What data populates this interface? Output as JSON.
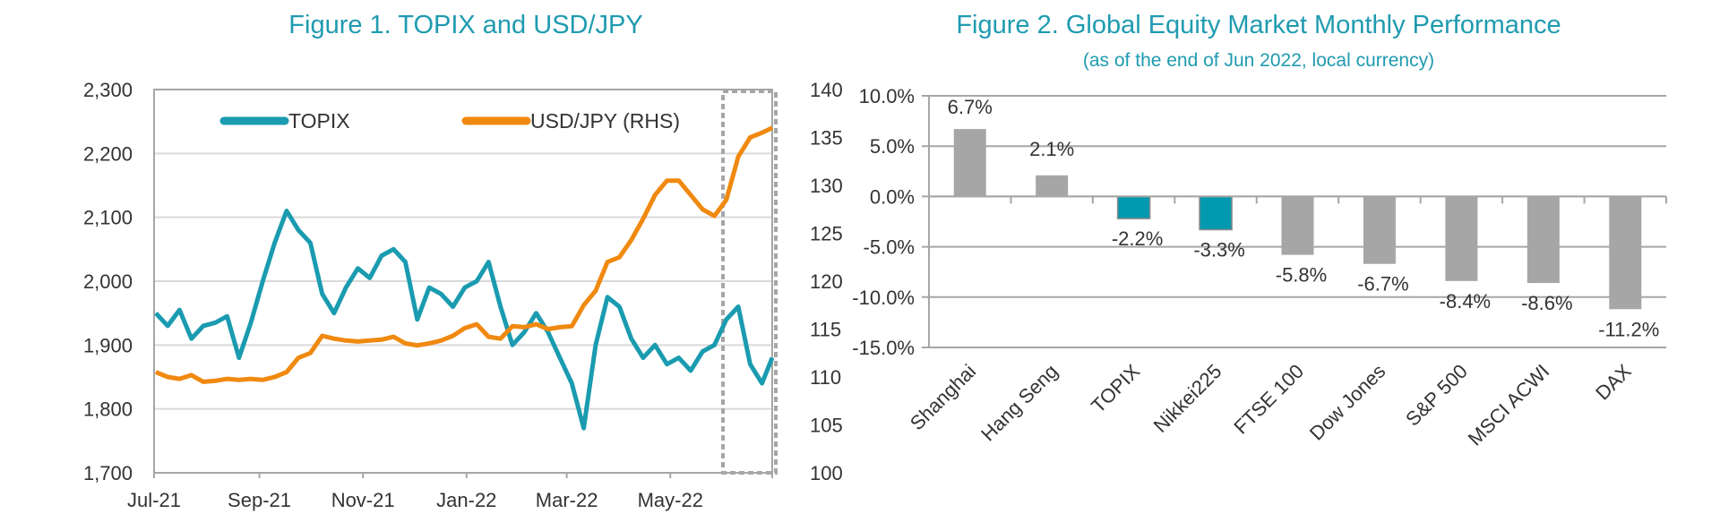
{
  "chart_data": [
    {
      "type": "line",
      "title": "Figure 1. TOPIX and USD/JPY",
      "x_tick_labels": [
        "Jul-21",
        "Sep-21",
        "Nov-21",
        "Jan-22",
        "Mar-22",
        "May-22"
      ],
      "x_ticks": [
        "2021-07-01",
        "2021-09-01",
        "2021-11-01",
        "2022-01-01",
        "2022-03-01",
        "2022-05-01"
      ],
      "xlim": [
        "2021-07-01",
        "2022-06-30"
      ],
      "y_left": {
        "lim": [
          1700,
          2300
        ],
        "ticks": [
          1700,
          1800,
          1900,
          2000,
          2100,
          2200,
          2300
        ],
        "tick_labels": [
          "1,700",
          "1,800",
          "1,900",
          "2,000",
          "2,100",
          "2,200",
          "2,300"
        ]
      },
      "y_right": {
        "lim": [
          100,
          140
        ],
        "ticks": [
          100,
          105,
          110,
          115,
          120,
          125,
          130,
          135,
          140
        ],
        "tick_labels": [
          "100",
          "105",
          "110",
          "115",
          "120",
          "125",
          "130",
          "135",
          "140"
        ]
      },
      "grid": true,
      "legend": "top",
      "highlight_box": {
        "from": "2022-06-01",
        "to": "2022-06-30",
        "style": "dashed"
      },
      "x": [
        "2021-07-02",
        "2021-07-09",
        "2021-07-16",
        "2021-07-23",
        "2021-07-30",
        "2021-08-06",
        "2021-08-13",
        "2021-08-20",
        "2021-08-27",
        "2021-09-03",
        "2021-09-10",
        "2021-09-17",
        "2021-09-24",
        "2021-10-01",
        "2021-10-08",
        "2021-10-15",
        "2021-10-22",
        "2021-10-29",
        "2021-11-05",
        "2021-11-12",
        "2021-11-19",
        "2021-11-26",
        "2021-12-03",
        "2021-12-10",
        "2021-12-17",
        "2021-12-24",
        "2021-12-31",
        "2022-01-07",
        "2022-01-14",
        "2022-01-21",
        "2022-01-28",
        "2022-02-04",
        "2022-02-11",
        "2022-02-18",
        "2022-02-25",
        "2022-03-04",
        "2022-03-11",
        "2022-03-18",
        "2022-03-25",
        "2022-04-01",
        "2022-04-08",
        "2022-04-15",
        "2022-04-22",
        "2022-04-29",
        "2022-05-06",
        "2022-05-13",
        "2022-05-20",
        "2022-05-27",
        "2022-06-03",
        "2022-06-10",
        "2022-06-17",
        "2022-06-24",
        "2022-06-30"
      ],
      "series": [
        {
          "name": "TOPIX",
          "axis": "left",
          "color": "#1a9bb0",
          "values": [
            1950,
            1930,
            1955,
            1910,
            1930,
            1935,
            1945,
            1880,
            1935,
            2000,
            2060,
            2110,
            2080,
            2060,
            1980,
            1950,
            1990,
            2020,
            2005,
            2040,
            2050,
            2030,
            1940,
            1990,
            1980,
            1960,
            1990,
            2000,
            2030,
            1960,
            1900,
            1920,
            1950,
            1920,
            1880,
            1840,
            1770,
            1900,
            1975,
            1960,
            1910,
            1880,
            1900,
            1870,
            1880,
            1860,
            1890,
            1900,
            1940,
            1960,
            1870,
            1840,
            1880
          ]
        },
        {
          "name": "USD/JPY (RHS)",
          "axis": "right",
          "color": "#f0890f",
          "values": [
            110.5,
            110,
            109.8,
            110.2,
            109.5,
            109.6,
            109.8,
            109.7,
            109.8,
            109.7,
            110,
            110.5,
            112,
            112.5,
            114.3,
            114,
            113.8,
            113.7,
            113.8,
            113.9,
            114.2,
            113.5,
            113.3,
            113.5,
            113.8,
            114.3,
            115.1,
            115.5,
            114.2,
            114,
            115.3,
            115.2,
            115.5,
            115,
            115.2,
            115.3,
            117.5,
            119,
            122,
            122.5,
            124.3,
            126.5,
            129,
            130.5,
            130.5,
            129,
            127.5,
            126.8,
            128.5,
            133,
            135,
            135.5,
            136
          ]
        }
      ]
    },
    {
      "type": "bar",
      "title": "Figure 2. Global Equity Market Monthly Performance",
      "subtitle": "(as of the end of Jun 2022, local currency)",
      "categories": [
        "Shanghai",
        "Hang Seng",
        "TOPIX",
        "Nikkei225",
        "FTSE 100",
        "Dow Jones",
        "S&P 500",
        "MSCI ACWI",
        "DAX"
      ],
      "values": [
        6.7,
        2.1,
        -2.2,
        -3.3,
        -5.8,
        -6.7,
        -8.4,
        -8.6,
        -11.2
      ],
      "data_labels": [
        "6.7%",
        "2.1%",
        "-2.2%",
        "-3.3%",
        "-5.8%",
        "-6.7%",
        "-8.4%",
        "-8.6%",
        "-11.2%"
      ],
      "highlighted": [
        "TOPIX",
        "Nikkei225"
      ],
      "ylim": [
        -15,
        10
      ],
      "y_ticks": [
        10,
        5,
        0,
        -5,
        -10,
        -15
      ],
      "y_tick_labels": [
        "10.0%",
        "5.0%",
        "0.0%",
        "-5.0%",
        "-10.0%",
        "-15.0%"
      ],
      "grid": true,
      "colors": {
        "default": "#a6a6a6",
        "highlight": "#0099b0"
      }
    }
  ]
}
